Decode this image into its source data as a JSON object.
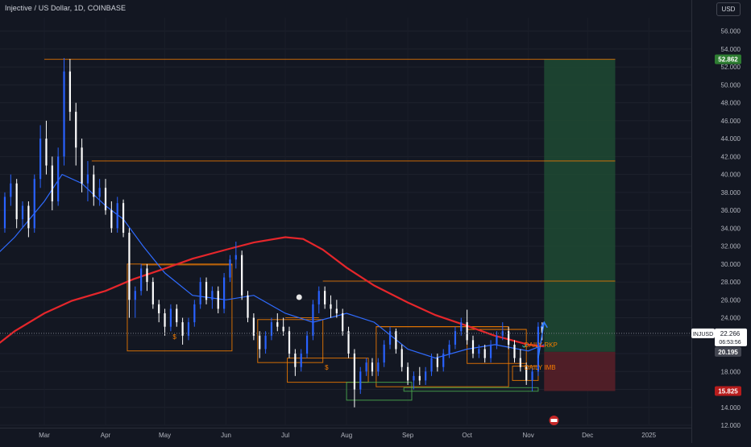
{
  "header": {
    "title": "Injective / US Dollar, 1D, COINBASE",
    "currency": "USD"
  },
  "colors": {
    "background": "#131722",
    "candle_up": "#2962ff",
    "candle_down": "#ffffff",
    "ma_slow": "#e5262b",
    "ma_fast": "#2f6bff",
    "level_line": "#f57c00",
    "demand_zone": "#4caf50",
    "target_zone": "#1f4a32",
    "stop_zone": "#5a2028"
  },
  "chart_data": {
    "type": "candlestick",
    "symbol": "INJUSD",
    "x_labels": [
      "Mar",
      "Apr",
      "May",
      "Jun",
      "Jul",
      "Aug",
      "Sep",
      "Oct",
      "Nov",
      "Dec",
      "2025"
    ],
    "y_ticks": [
      "12.000",
      "14.000",
      "16.000",
      "18.000",
      "20.000",
      "22.000",
      "24.000",
      "26.000",
      "28.000",
      "30.000",
      "32.000",
      "34.000",
      "36.000",
      "38.000",
      "40.000",
      "42.000",
      "44.000",
      "46.000",
      "48.000",
      "50.000",
      "52.000",
      "54.000",
      "56.000"
    ],
    "ylim": [
      12,
      57.5
    ],
    "price_tags": {
      "target": "52.862",
      "symbol": "INJUSD",
      "last_price": "22.266",
      "countdown": "06:53:56",
      "entry": "20.195",
      "stop": "15.825"
    },
    "annotations": [
      {
        "text": "$",
        "date": "2024-05-05",
        "price": 21.6
      },
      {
        "text": "$",
        "date": "2024-07-21",
        "price": 18.2
      },
      {
        "text": "DAILY RKP",
        "date": "2024-10-30",
        "price": 20.7
      },
      {
        "text": "DAILY IMB",
        "date": "2024-10-30",
        "price": 18.2
      }
    ],
    "levels": [
      {
        "price": 52.862,
        "from": "2024-03-01",
        "to": "2024-12-15"
      },
      {
        "price": 41.5,
        "from": "2024-03-25",
        "to": "2024-12-15"
      },
      {
        "price": 28.1,
        "from": "2024-07-20",
        "to": "2024-12-15"
      },
      {
        "price": 29.9,
        "from": "2024-04-19",
        "to": "2024-06-04"
      },
      {
        "price": 24.0,
        "from": "2024-07-01",
        "to": "2024-07-18"
      },
      {
        "price": 23.0,
        "from": "2024-08-16",
        "to": "2024-10-22"
      },
      {
        "price": 22.7,
        "from": "2024-10-01",
        "to": "2024-10-31"
      }
    ],
    "zones": [
      {
        "kind": "level",
        "from": "2024-04-12",
        "to": "2024-06-04",
        "low": 20.3,
        "high": 30.0
      },
      {
        "kind": "level",
        "from": "2024-06-17",
        "to": "2024-07-20",
        "low": 19.0,
        "high": 23.8
      },
      {
        "kind": "level",
        "from": "2024-07-02",
        "to": "2024-08-12",
        "low": 16.8,
        "high": 19.5
      },
      {
        "kind": "level",
        "from": "2024-08-16",
        "to": "2024-10-22",
        "low": 16.3,
        "high": 23.0
      },
      {
        "kind": "level",
        "from": "2024-10-01",
        "to": "2024-10-31",
        "low": 18.9,
        "high": 22.7
      },
      {
        "kind": "level",
        "from": "2024-10-24",
        "to": "2024-11-06",
        "low": 17.0,
        "high": 18.6
      },
      {
        "kind": "demand",
        "from": "2024-08-01",
        "to": "2024-09-03",
        "low": 14.8,
        "high": 16.8
      },
      {
        "kind": "demand",
        "from": "2024-08-30",
        "to": "2024-11-06",
        "low": 15.8,
        "high": 16.2
      }
    ],
    "position": {
      "from": "2024-11-09",
      "to": "2024-12-15",
      "entry": 20.195,
      "target": 52.862,
      "stop": 15.825
    },
    "ma_slow": [
      [
        "2024-02-01",
        20.1
      ],
      [
        "2024-02-15",
        22.5
      ],
      [
        "2024-03-01",
        24.5
      ],
      [
        "2024-03-15",
        25.9
      ],
      [
        "2024-04-01",
        27.0
      ],
      [
        "2024-04-15",
        28.3
      ],
      [
        "2024-05-01",
        29.5
      ],
      [
        "2024-05-15",
        30.6
      ],
      [
        "2024-06-01",
        31.6
      ],
      [
        "2024-06-15",
        32.4
      ],
      [
        "2024-07-01",
        33.0
      ],
      [
        "2024-07-10",
        32.8
      ],
      [
        "2024-07-20",
        31.6
      ],
      [
        "2024-08-01",
        29.6
      ],
      [
        "2024-08-15",
        27.6
      ],
      [
        "2024-09-01",
        25.7
      ],
      [
        "2024-09-15",
        24.3
      ],
      [
        "2024-10-01",
        23.1
      ],
      [
        "2024-10-15",
        22.0
      ],
      [
        "2024-11-01",
        21.0
      ],
      [
        "2024-11-09",
        20.8
      ]
    ],
    "ma_fast": [
      [
        "2024-02-01",
        30.0
      ],
      [
        "2024-02-15",
        33.0
      ],
      [
        "2024-03-01",
        37.0
      ],
      [
        "2024-03-10",
        40.0
      ],
      [
        "2024-03-20",
        39.0
      ],
      [
        "2024-04-01",
        36.5
      ],
      [
        "2024-04-10",
        35.0
      ],
      [
        "2024-04-20",
        32.0
      ],
      [
        "2024-05-01",
        29.0
      ],
      [
        "2024-05-15",
        26.5
      ],
      [
        "2024-06-01",
        26.0
      ],
      [
        "2024-06-15",
        26.5
      ],
      [
        "2024-07-01",
        24.5
      ],
      [
        "2024-07-15",
        23.5
      ],
      [
        "2024-08-01",
        24.5
      ],
      [
        "2024-08-15",
        23.5
      ],
      [
        "2024-09-01",
        20.5
      ],
      [
        "2024-09-15",
        19.5
      ],
      [
        "2024-10-01",
        20.5
      ],
      [
        "2024-10-15",
        21.0
      ],
      [
        "2024-11-01",
        20.3
      ],
      [
        "2024-11-09",
        21.0
      ]
    ],
    "candles": [
      [
        "2024-02-01",
        34.0,
        36.0,
        33.0,
        35.5
      ],
      [
        "2024-02-04",
        35.5,
        37.5,
        34.5,
        36.8
      ],
      [
        "2024-02-07",
        36.8,
        37.5,
        33.0,
        34.0
      ],
      [
        "2024-02-10",
        34.0,
        38.0,
        33.5,
        37.5
      ],
      [
        "2024-02-13",
        37.5,
        40.0,
        36.5,
        39.0
      ],
      [
        "2024-02-16",
        39.0,
        39.5,
        34.0,
        35.0
      ],
      [
        "2024-02-19",
        35.0,
        37.0,
        34.0,
        36.5
      ],
      [
        "2024-02-22",
        36.5,
        37.0,
        33.0,
        34.0
      ],
      [
        "2024-02-25",
        34.0,
        40.0,
        33.5,
        39.5
      ],
      [
        "2024-02-28",
        39.5,
        45.5,
        38.5,
        44.0
      ],
      [
        "2024-03-02",
        44.0,
        46.0,
        40.0,
        41.0
      ],
      [
        "2024-03-05",
        41.0,
        42.0,
        36.0,
        37.0
      ],
      [
        "2024-03-08",
        37.0,
        43.0,
        36.5,
        42.0
      ],
      [
        "2024-03-11",
        42.0,
        53.0,
        41.0,
        51.5
      ],
      [
        "2024-03-14",
        51.5,
        52.9,
        46.0,
        47.0
      ],
      [
        "2024-03-17",
        47.0,
        48.0,
        41.0,
        43.0
      ],
      [
        "2024-03-20",
        43.0,
        44.0,
        38.0,
        39.0
      ],
      [
        "2024-03-23",
        39.0,
        41.5,
        37.0,
        40.0
      ],
      [
        "2024-03-26",
        40.0,
        41.0,
        36.5,
        37.5
      ],
      [
        "2024-03-29",
        37.5,
        39.5,
        36.5,
        38.5
      ],
      [
        "2024-04-01",
        38.5,
        39.5,
        35.5,
        36.0
      ],
      [
        "2024-04-04",
        36.0,
        37.0,
        33.5,
        34.0
      ],
      [
        "2024-04-07",
        34.0,
        37.5,
        33.5,
        36.8
      ],
      [
        "2024-04-10",
        36.8,
        37.2,
        33.0,
        33.5
      ],
      [
        "2024-04-13",
        33.5,
        34.0,
        24.0,
        26.0
      ],
      [
        "2024-04-16",
        26.0,
        27.5,
        24.0,
        27.0
      ],
      [
        "2024-04-19",
        27.0,
        30.0,
        26.5,
        29.5
      ],
      [
        "2024-04-22",
        29.5,
        30.0,
        27.0,
        28.0
      ],
      [
        "2024-04-25",
        28.0,
        28.5,
        25.0,
        25.5
      ],
      [
        "2024-04-28",
        25.5,
        26.0,
        23.5,
        24.5
      ],
      [
        "2024-05-01",
        24.5,
        25.0,
        22.0,
        23.0
      ],
      [
        "2024-05-04",
        23.0,
        25.5,
        22.5,
        25.0
      ],
      [
        "2024-05-07",
        25.0,
        25.5,
        23.0,
        23.5
      ],
      [
        "2024-05-10",
        23.5,
        24.0,
        21.0,
        22.0
      ],
      [
        "2024-05-13",
        22.0,
        24.0,
        21.5,
        23.5
      ],
      [
        "2024-05-16",
        23.5,
        26.0,
        23.0,
        25.5
      ],
      [
        "2024-05-19",
        25.5,
        28.5,
        25.0,
        28.0
      ],
      [
        "2024-05-22",
        28.0,
        28.5,
        25.5,
        26.0
      ],
      [
        "2024-05-25",
        26.0,
        27.5,
        25.0,
        27.0
      ],
      [
        "2024-05-28",
        27.0,
        27.5,
        24.5,
        25.0
      ],
      [
        "2024-05-31",
        25.0,
        29.0,
        24.5,
        28.5
      ],
      [
        "2024-06-03",
        28.5,
        31.0,
        28.0,
        30.5
      ],
      [
        "2024-06-06",
        30.5,
        32.5,
        29.5,
        31.0
      ],
      [
        "2024-06-09",
        31.0,
        31.5,
        26.0,
        26.5
      ],
      [
        "2024-06-12",
        26.5,
        27.0,
        23.5,
        24.0
      ],
      [
        "2024-06-15",
        24.0,
        24.5,
        21.5,
        22.0
      ],
      [
        "2024-06-18",
        22.0,
        22.5,
        19.5,
        20.5
      ],
      [
        "2024-06-21",
        20.5,
        22.5,
        20.0,
        22.0
      ],
      [
        "2024-06-24",
        22.0,
        24.0,
        21.5,
        23.5
      ],
      [
        "2024-06-27",
        23.5,
        24.5,
        22.5,
        23.0
      ],
      [
        "2024-06-30",
        23.0,
        24.0,
        22.0,
        22.5
      ],
      [
        "2024-07-03",
        22.5,
        23.0,
        19.5,
        20.0
      ],
      [
        "2024-07-06",
        20.0,
        20.5,
        17.5,
        18.5
      ],
      [
        "2024-07-09",
        18.5,
        20.5,
        18.0,
        20.0
      ],
      [
        "2024-07-12",
        20.0,
        22.5,
        19.5,
        22.0
      ],
      [
        "2024-07-15",
        22.0,
        26.0,
        21.5,
        25.5
      ],
      [
        "2024-07-18",
        25.5,
        27.5,
        24.5,
        27.0
      ],
      [
        "2024-07-21",
        27.0,
        27.5,
        25.0,
        25.5
      ],
      [
        "2024-07-24",
        25.5,
        26.5,
        24.0,
        25.0
      ],
      [
        "2024-07-27",
        25.0,
        26.0,
        24.0,
        24.5
      ],
      [
        "2024-07-30",
        24.5,
        25.0,
        22.0,
        22.5
      ],
      [
        "2024-08-02",
        22.5,
        23.0,
        19.5,
        20.0
      ],
      [
        "2024-08-05",
        20.0,
        20.5,
        14.0,
        16.0
      ],
      [
        "2024-08-08",
        16.0,
        18.5,
        15.5,
        18.0
      ],
      [
        "2024-08-11",
        18.0,
        19.5,
        17.5,
        19.0
      ],
      [
        "2024-08-14",
        19.0,
        19.5,
        17.5,
        18.0
      ],
      [
        "2024-08-17",
        18.0,
        19.5,
        17.5,
        19.0
      ],
      [
        "2024-08-20",
        19.0,
        21.5,
        18.5,
        21.0
      ],
      [
        "2024-08-23",
        21.0,
        23.0,
        20.5,
        22.5
      ],
      [
        "2024-08-26",
        22.5,
        22.8,
        20.0,
        20.5
      ],
      [
        "2024-08-29",
        20.5,
        21.0,
        18.0,
        18.5
      ],
      [
        "2024-09-01",
        18.5,
        19.0,
        16.5,
        17.0
      ],
      [
        "2024-09-04",
        17.0,
        18.0,
        16.0,
        17.5
      ],
      [
        "2024-09-07",
        17.5,
        18.5,
        16.5,
        17.0
      ],
      [
        "2024-09-10",
        17.0,
        18.5,
        16.5,
        18.0
      ],
      [
        "2024-09-13",
        18.0,
        20.0,
        17.5,
        19.5
      ],
      [
        "2024-09-16",
        19.5,
        20.0,
        18.0,
        18.5
      ],
      [
        "2024-09-19",
        18.5,
        20.5,
        18.0,
        20.0
      ],
      [
        "2024-09-22",
        20.0,
        21.5,
        19.5,
        21.0
      ],
      [
        "2024-09-25",
        21.0,
        23.0,
        20.5,
        22.5
      ],
      [
        "2024-09-28",
        22.5,
        24.0,
        22.0,
        23.5
      ],
      [
        "2024-10-01",
        23.5,
        24.9,
        21.0,
        21.5
      ],
      [
        "2024-10-04",
        21.5,
        22.0,
        19.5,
        20.0
      ],
      [
        "2024-10-07",
        20.0,
        21.0,
        19.5,
        20.5
      ],
      [
        "2024-10-10",
        20.5,
        21.0,
        19.0,
        19.5
      ],
      [
        "2024-10-13",
        19.5,
        21.5,
        19.0,
        21.0
      ],
      [
        "2024-10-16",
        21.0,
        22.5,
        20.5,
        22.0
      ],
      [
        "2024-10-19",
        22.0,
        23.5,
        21.5,
        22.5
      ],
      [
        "2024-10-22",
        22.5,
        23.0,
        20.5,
        21.0
      ],
      [
        "2024-10-25",
        21.0,
        21.5,
        19.0,
        19.5
      ],
      [
        "2024-10-28",
        19.5,
        20.5,
        18.0,
        18.5
      ],
      [
        "2024-10-31",
        18.5,
        19.0,
        16.5,
        17.0
      ],
      [
        "2024-11-03",
        17.0,
        18.5,
        15.8,
        18.0
      ],
      [
        "2024-11-06",
        18.0,
        23.5,
        17.5,
        23.0
      ],
      [
        "2024-11-08",
        23.0,
        23.5,
        21.5,
        22.3
      ]
    ]
  }
}
